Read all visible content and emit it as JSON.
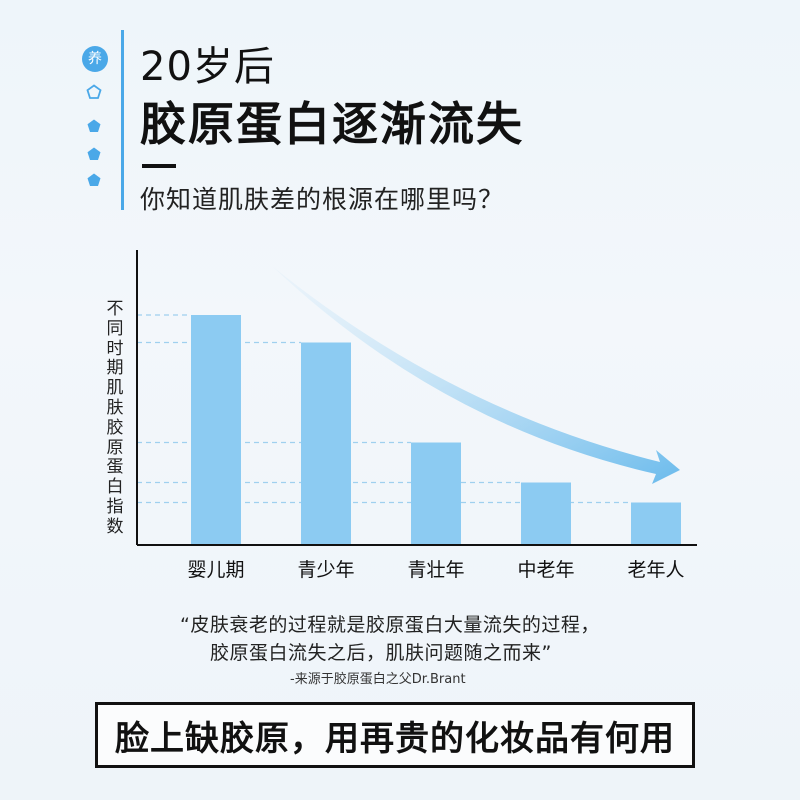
{
  "header": {
    "badge": "养",
    "subtitle": "20岁后",
    "title": "胶原蛋白逐渐流失",
    "question": "你知道肌肤差的根源在哪里吗？"
  },
  "chart_data": {
    "type": "bar",
    "title": "",
    "xlabel": "",
    "ylabel": "不同时期肌肤胶原蛋白指数",
    "categories": [
      "婴儿期",
      "青少年",
      "青壮年",
      "中老年",
      "老年人"
    ],
    "values": [
      92,
      81,
      41,
      25,
      17
    ],
    "ylim": [
      0,
      118
    ],
    "grid": false,
    "color": "#8ccbf2",
    "trend_arrow_color": "#7cc3ee"
  },
  "quote": {
    "line1": "“皮肤衰老的过程就是胶原蛋白大量流失的过程，",
    "line2": "胶原蛋白流失之后，肌肤问题随之而来”",
    "source": "-来源于胶原蛋白之父Dr.Brant"
  },
  "footer": {
    "slogan": "脸上缺胶原，用再贵的化妆品有何用"
  },
  "icons": [
    "pentagon-outline-icon",
    "pentagon-filled-icon",
    "pentagon-filled-icon",
    "pentagon-filled-icon"
  ]
}
